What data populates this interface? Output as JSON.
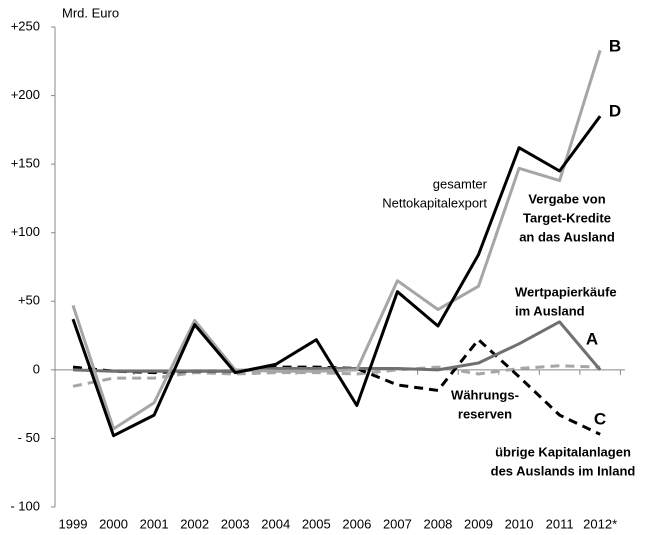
{
  "chart_data": {
    "type": "line",
    "unit_label": "Mrd. Euro",
    "categories": [
      "1999",
      "2000",
      "2001",
      "2002",
      "2003",
      "2004",
      "2005",
      "2006",
      "2007",
      "2008",
      "2009",
      "2010",
      "2011",
      "2012*"
    ],
    "series": [
      {
        "name": "B",
        "color": "#a6a6a6",
        "dashed": false,
        "values": [
          47,
          -43,
          -24,
          36,
          0,
          -1,
          -1,
          0,
          65,
          44,
          61,
          147,
          138,
          233
        ]
      },
      {
        "name": "D",
        "color": "#000000",
        "dashed": false,
        "values": [
          37,
          -48,
          -33,
          33,
          -2,
          4,
          22,
          -26,
          57,
          32,
          84,
          162,
          145,
          185
        ]
      },
      {
        "name": "A",
        "color": "#707070",
        "dashed": false,
        "values": [
          0,
          -1,
          -1,
          -1,
          -1,
          1,
          1,
          1,
          1,
          0,
          5,
          19,
          35,
          0
        ]
      },
      {
        "name": "C",
        "color": "#000000",
        "dashed": true,
        "values": [
          2,
          -1,
          -2,
          -1,
          -1,
          2,
          2,
          1,
          -11,
          -15,
          22,
          -5,
          -33,
          -47
        ]
      },
      {
        "color": "#a6a6a6",
        "dashed": true,
        "values": [
          -12,
          -6,
          -6,
          -2,
          -3,
          -2,
          -2,
          -3,
          0,
          2,
          -3,
          1,
          3,
          2
        ]
      }
    ],
    "annotations": [
      {
        "lines": [
          "gesamter",
          "Nettokapitalexport"
        ]
      },
      {
        "lines": [
          "Vergabe von",
          "Target-Kredite",
          "an das Ausland"
        ]
      },
      {
        "lines": [
          "Wertpapierkäufe",
          "im Ausland"
        ]
      },
      {
        "lines": [
          "Währungs-",
          "reserven"
        ]
      },
      {
        "lines": [
          "übrige Kapitalanlagen",
          "des Auslands im Inland"
        ]
      }
    ],
    "ylim": [
      -100,
      250
    ],
    "yticks": [
      {
        "value": 250,
        "label": "+250"
      },
      {
        "value": 200,
        "label": "+200"
      },
      {
        "value": 150,
        "label": "+150"
      },
      {
        "value": 100,
        "label": "+100"
      },
      {
        "value": 50,
        "label": "+50"
      },
      0,
      {
        "value": -50,
        "label": "- 50"
      },
      {
        "value": -100,
        "label": "- 100"
      }
    ],
    "grid": false
  }
}
